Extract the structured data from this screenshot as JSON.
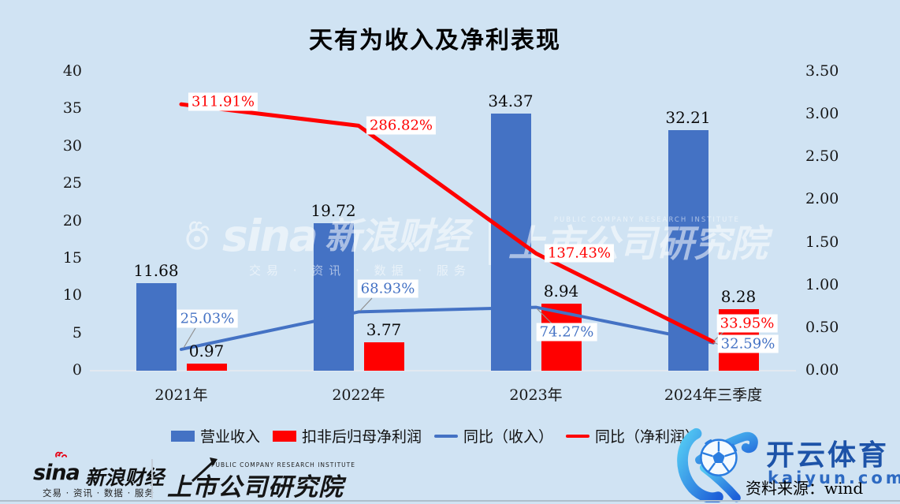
{
  "chart_data": {
    "type": "bar",
    "subtype": "combo-dual-axis-bar-line",
    "title": "天有为收入及净利表现",
    "categories": [
      "2021年",
      "2022年",
      "2023年",
      "2024年三季度"
    ],
    "series": [
      {
        "name": "营业收入",
        "kind": "bar",
        "axis": "left",
        "color": "#4472c4",
        "values": [
          11.68,
          19.72,
          34.37,
          32.21
        ],
        "labels": [
          "11.68",
          "19.72",
          "34.37",
          "32.21"
        ]
      },
      {
        "name": "扣非后归母净利润",
        "kind": "bar",
        "axis": "left",
        "color": "#ff0000",
        "values": [
          0.97,
          3.77,
          8.94,
          8.28
        ],
        "labels": [
          "0.97",
          "3.77",
          "8.94",
          "8.28"
        ]
      },
      {
        "name": "同比（收入）",
        "kind": "line",
        "axis": "right",
        "color": "#4472c4",
        "values": [
          0.2503,
          0.6893,
          0.7427,
          0.3259
        ],
        "labels": [
          "25.03%",
          "68.93%",
          "74.27%",
          "32.59%"
        ]
      },
      {
        "name": "同比（净利润）",
        "kind": "line",
        "axis": "right",
        "color": "#ff0000",
        "values": [
          3.1191,
          2.8682,
          1.3743,
          0.3395
        ],
        "labels": [
          "311.91%",
          "286.82%",
          "137.43%",
          "33.95%"
        ]
      }
    ],
    "left_axis": {
      "min": 0,
      "max": 40,
      "ticks": [
        "0",
        "5",
        "10",
        "15",
        "20",
        "25",
        "30",
        "35",
        "40"
      ]
    },
    "right_axis": {
      "min": 0,
      "max": 3.5,
      "ticks": [
        "0.00",
        "0.50",
        "1.00",
        "1.50",
        "2.00",
        "2.50",
        "3.00",
        "3.50"
      ]
    },
    "legend_position": "bottom",
    "grid": false,
    "background": "#d0e3f3"
  },
  "brand": {
    "sina_word": "sina",
    "sina_cn": "新浪财经",
    "sina_sub": "交易 · 资讯 · 数据 · 服务",
    "inst_caption": "PUBLIC COMPANY RESEARCH INSTITUTE",
    "inst_cn": "上市公司研究院"
  },
  "kaiyun": {
    "name_cn": "开云体育",
    "domain": "kaiyun.com"
  },
  "source_label": "资料来源：wind"
}
